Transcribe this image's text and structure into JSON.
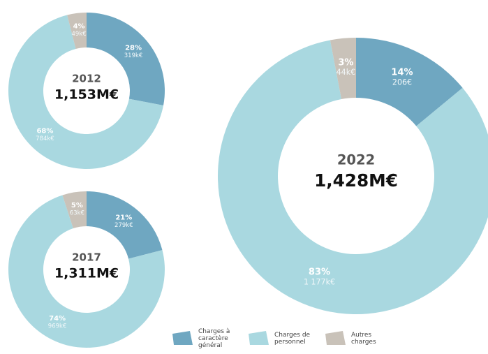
{
  "chart_data": [
    {
      "type": "pie",
      "title": "2012",
      "total": "1,153M€",
      "categories": [
        "Charges à caractère général",
        "Charges de personnel",
        "Autres charges"
      ],
      "colors": [
        "#6fa7c1",
        "#a9d8e0",
        "#c9c2b9"
      ],
      "values": [
        28,
        68,
        4
      ],
      "value_labels": [
        "28%",
        "68%",
        "4%"
      ],
      "amounts": [
        "319k€",
        "784k€",
        "49k€"
      ]
    },
    {
      "type": "pie",
      "title": "2017",
      "total": "1,311M€",
      "categories": [
        "Charges à caractère général",
        "Charges de personnel",
        "Autres charges"
      ],
      "colors": [
        "#6fa7c1",
        "#a9d8e0",
        "#c9c2b9"
      ],
      "values": [
        21,
        74,
        5
      ],
      "value_labels": [
        "21%",
        "74%",
        "5%"
      ],
      "amounts": [
        "279k€",
        "969k€",
        "63k€"
      ]
    },
    {
      "type": "pie",
      "title": "2022",
      "total": "1,428M€",
      "categories": [
        "Charges à caractère général",
        "Charges de personnel",
        "Autres charges"
      ],
      "colors": [
        "#6fa7c1",
        "#a9d8e0",
        "#c9c2b9"
      ],
      "values": [
        14,
        83,
        3
      ],
      "value_labels": [
        "14%",
        "83%",
        "3%"
      ],
      "amounts": [
        "206€",
        "1 177k€",
        "44k€"
      ]
    }
  ]
}
